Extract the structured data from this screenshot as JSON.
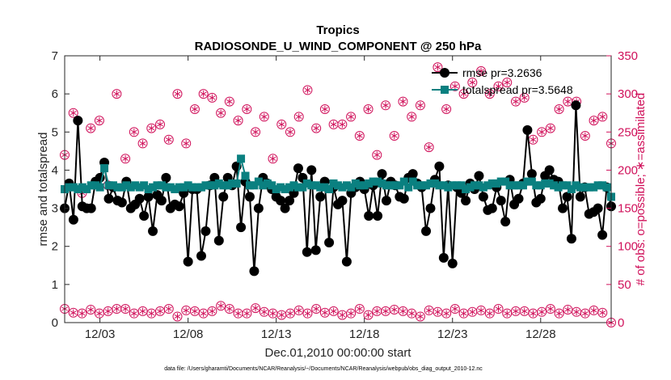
{
  "chart_data": {
    "type": "line",
    "title": "Tropics",
    "subtitle": "RADIOSONDE_U_WIND_COMPONENT @ 250 hPa",
    "xlabel": "Dec.01,2010 00:00:00 start",
    "ylabel": "rmse and totalspread",
    "ylabel_right": "# of obs: o=possible; ∗=assimilated",
    "xlim": [
      1,
      32
    ],
    "ylim": [
      0,
      7
    ],
    "ylim_right": [
      0,
      350
    ],
    "x_ticks": [
      3,
      8,
      13,
      18,
      23,
      28
    ],
    "x_tick_labels": [
      "12/03",
      "12/08",
      "12/13",
      "12/18",
      "12/23",
      "12/28"
    ],
    "y_ticks": [
      "0",
      "1",
      "2",
      "3",
      "4",
      "5",
      "6",
      "7"
    ],
    "y_ticks_right": [
      "0",
      "50",
      "100",
      "150",
      "200",
      "250",
      "300",
      "350"
    ],
    "legend_position": "top-right",
    "x_start": 1,
    "x_step": 0.25,
    "series": [
      {
        "name": "rmse pr=3.2636",
        "color": "#000000",
        "marker": "circle",
        "axis": "left",
        "values": [
          3.0,
          3.65,
          2.7,
          5.3,
          3.05,
          3.0,
          3.0,
          3.7,
          3.8,
          4.2,
          3.25,
          3.55,
          3.2,
          3.15,
          3.7,
          3.0,
          3.1,
          3.25,
          2.8,
          3.3,
          2.4,
          3.35,
          3.2,
          3.8,
          3.0,
          3.1,
          3.05,
          3.4,
          1.6,
          3.5,
          3.5,
          1.75,
          2.4,
          3.6,
          3.8,
          2.15,
          3.3,
          3.8,
          3.6,
          4.1,
          2.5,
          3.7,
          3.3,
          1.35,
          3.0,
          3.8,
          3.65,
          3.5,
          3.3,
          3.2,
          3.0,
          3.2,
          3.4,
          4.05,
          3.8,
          1.85,
          4.0,
          1.9,
          3.3,
          3.7,
          2.1,
          3.55,
          3.1,
          3.2,
          1.6,
          3.4,
          3.55,
          3.7,
          3.5,
          2.8,
          3.6,
          2.8,
          3.9,
          3.2,
          3.7,
          3.6,
          3.3,
          3.25,
          3.8,
          3.9,
          3.65,
          3.55,
          2.4,
          3.0,
          3.75,
          4.1,
          1.7,
          3.6,
          1.55,
          3.55,
          3.4,
          3.2,
          3.65,
          3.5,
          3.85,
          3.3,
          2.95,
          3.0,
          3.55,
          3.2,
          2.65,
          3.75,
          3.1,
          3.25,
          3.65,
          5.05,
          3.9,
          3.15,
          3.25,
          3.85,
          4.0,
          3.75,
          3.7,
          3.0,
          3.3,
          2.2,
          5.7,
          3.3,
          3.55,
          2.85,
          2.9,
          3.0,
          2.3,
          3.55,
          3.05
        ],
        "note": "totalspread series below"
      },
      {
        "name": "totalspread pr=3.5648",
        "color": "#0a8080",
        "marker": "square",
        "axis": "left",
        "values": [
          3.5,
          3.55,
          3.55,
          3.5,
          3.55,
          3.5,
          3.6,
          3.6,
          3.55,
          4.05,
          3.6,
          3.6,
          3.55,
          3.55,
          3.6,
          3.55,
          3.6,
          3.55,
          3.6,
          3.5,
          3.55,
          3.6,
          3.6,
          3.55,
          3.55,
          3.5,
          3.55,
          3.55,
          3.6,
          3.55,
          3.55,
          3.55,
          3.6,
          3.6,
          3.6,
          3.65,
          3.6,
          3.6,
          3.65,
          3.65,
          4.3,
          3.85,
          3.6,
          3.6,
          3.7,
          3.6,
          3.65,
          3.6,
          3.5,
          3.55,
          3.5,
          3.55,
          3.6,
          3.55,
          3.55,
          3.65,
          3.6,
          3.6,
          3.55,
          3.55,
          3.5,
          3.65,
          3.6,
          3.55,
          3.6,
          3.55,
          3.65,
          3.6,
          3.6,
          3.65,
          3.7,
          3.7,
          3.65,
          3.6,
          3.6,
          3.6,
          3.6,
          3.7,
          3.55,
          3.7,
          3.6,
          3.6,
          3.6,
          3.65,
          3.65,
          3.6,
          3.6,
          3.55,
          3.6,
          3.6,
          3.6,
          3.5,
          3.55,
          3.6,
          3.6,
          3.55,
          3.6,
          3.65,
          3.65,
          3.7,
          3.7,
          3.6,
          3.6,
          3.6,
          3.6,
          3.7,
          3.7,
          3.6,
          3.6,
          3.65,
          3.65,
          3.6,
          3.55,
          3.6,
          3.6,
          3.5,
          3.6,
          3.55,
          3.55,
          3.55,
          3.55,
          3.6,
          3.6,
          3.55,
          3.3
        ]
      }
    ],
    "obs_possible": {
      "name": "possible (o)",
      "color": "#d0105a",
      "axis": "right",
      "upper": [
        220,
        275,
        170,
        255,
        265,
        180,
        300,
        215,
        250,
        235,
        255,
        260,
        240,
        300,
        235,
        280,
        300,
        295,
        275,
        290,
        265,
        280,
        250,
        270,
        215,
        260,
        250,
        270,
        305,
        255,
        280,
        260,
        260,
        270,
        245,
        280,
        220,
        285,
        245,
        290,
        270,
        285,
        230,
        335,
        280,
        310,
        300,
        315,
        330,
        300,
        310,
        315,
        290,
        295,
        240,
        250,
        255,
        280,
        290,
        290,
        245,
        265,
        270,
        235
      ],
      "lower": [
        18,
        13,
        12,
        17,
        12,
        15,
        18,
        18,
        12,
        15,
        12,
        15,
        18,
        8,
        16,
        15,
        12,
        15,
        22,
        18,
        12,
        12,
        19,
        14,
        12,
        10,
        12,
        16,
        12,
        18,
        13,
        15,
        10,
        12,
        18,
        10,
        15,
        15,
        17,
        15,
        12,
        8,
        16,
        14,
        12,
        18,
        12,
        14,
        16,
        12,
        18,
        12,
        15,
        15,
        12,
        14,
        18,
        12,
        17,
        14,
        12,
        16,
        13,
        0
      ]
    }
  },
  "footer": "data file: /Users/gharamti/Documents/NCAR/Reanalysis/~/Documents/NCAR/Reanalysis/webpub/obs_diag_output_2010-12.nc",
  "legend": {
    "rmse": "rmse pr=3.2636",
    "spread": "totalspread pr=3.5648"
  }
}
